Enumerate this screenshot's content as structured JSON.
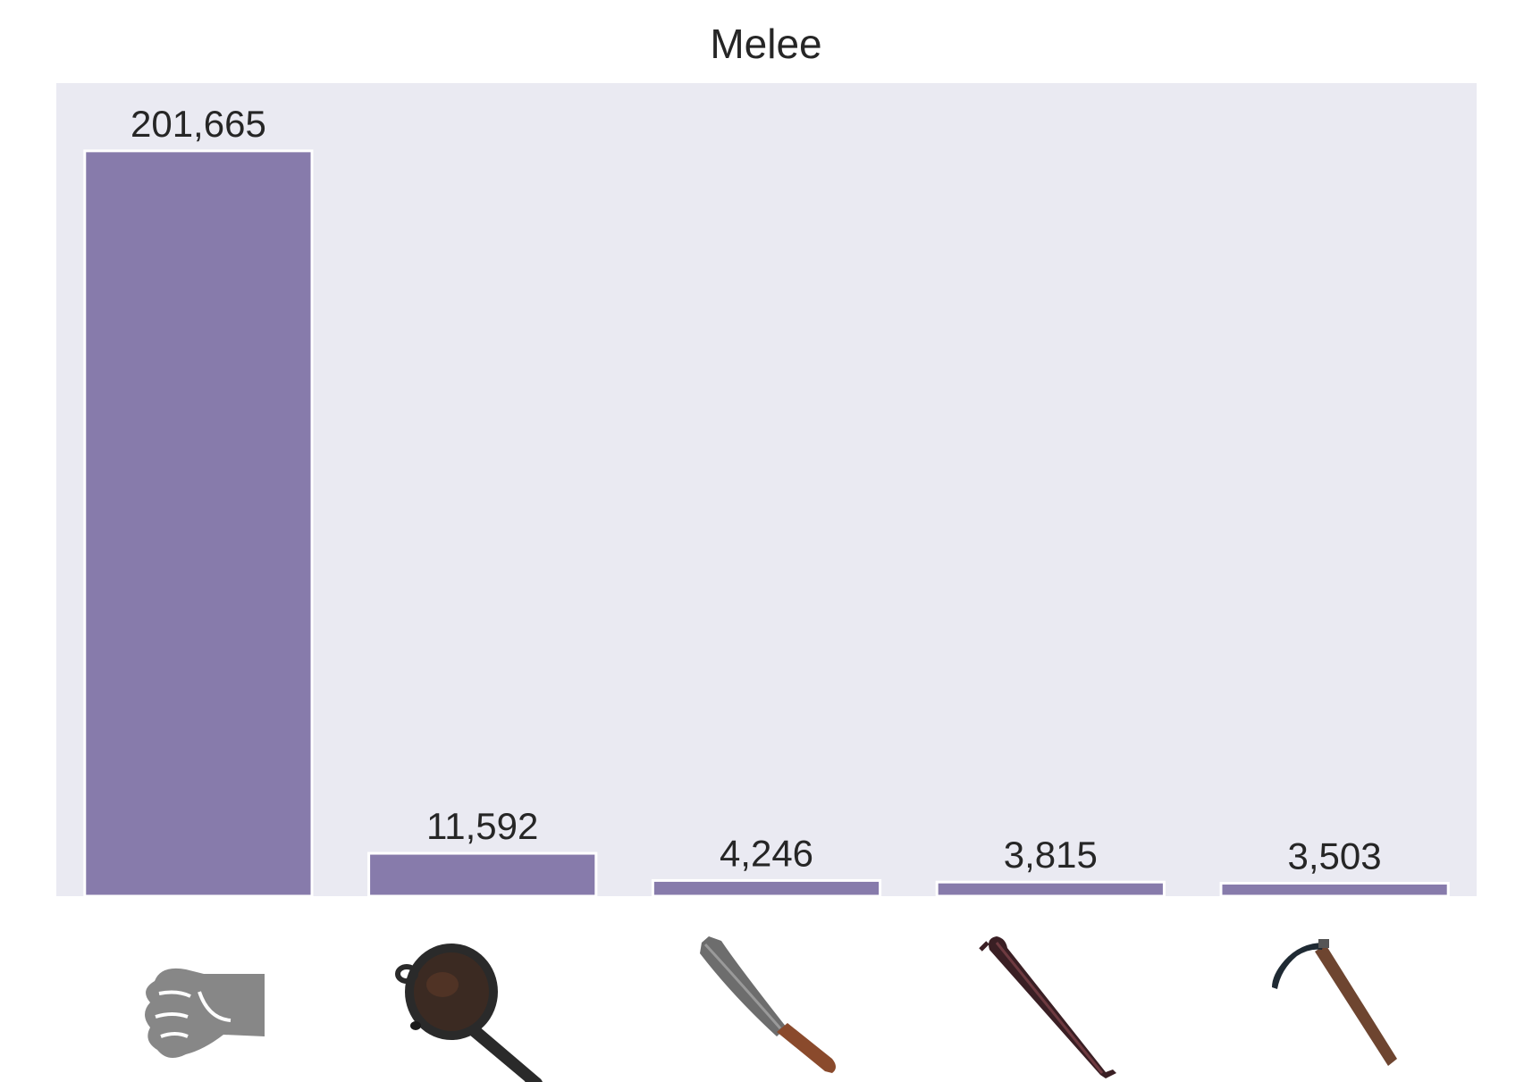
{
  "chart_data": {
    "type": "bar",
    "title": "Melee",
    "categories": [
      "Punch",
      "Pan",
      "Machete",
      "Crowbar",
      "Sickle"
    ],
    "category_icons": [
      "fist-icon",
      "frying-pan-icon",
      "machete-icon",
      "crowbar-icon",
      "sickle-icon"
    ],
    "values": [
      201665,
      11592,
      4246,
      3815,
      3503
    ],
    "value_labels": [
      "201,665",
      "11,592",
      "4,246",
      "3,815",
      "3,503"
    ],
    "ylim": [
      0,
      220000
    ],
    "grid": false,
    "xlabel": "",
    "ylabel": ""
  },
  "colors": {
    "bar": "#877bab",
    "plot_background": "#eaeaf2",
    "bar_edge": "#ffffff",
    "text": "#262626"
  }
}
